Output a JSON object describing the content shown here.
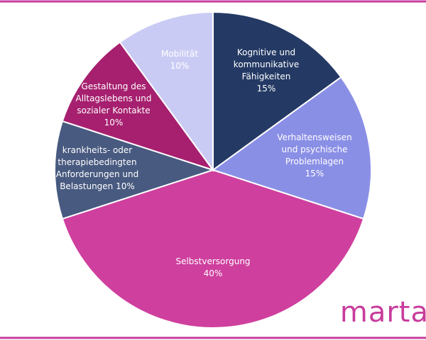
{
  "chart_data": {
    "type": "pie",
    "categories": [
      "Kognitive und kommunikative Fähigkeiten",
      "Verhaltensweisen und psychische Problemlagen",
      "Selbstversorgung",
      "krankheits- oder therapiebedingten Anforderungen und Belastungen",
      "Gestaltung des Alltagslebens und sozialer Kontakte",
      "Mobilität"
    ],
    "values": [
      15,
      15,
      40,
      10,
      10,
      10
    ],
    "value_labels": [
      "15%",
      "15%",
      "40%",
      "10%",
      "10%",
      "10%"
    ],
    "colors": [
      "#243a64",
      "#8a8fe6",
      "#cf3f9e",
      "#485a80",
      "#a6206f",
      "#cacbf4"
    ]
  },
  "logo": "marta"
}
